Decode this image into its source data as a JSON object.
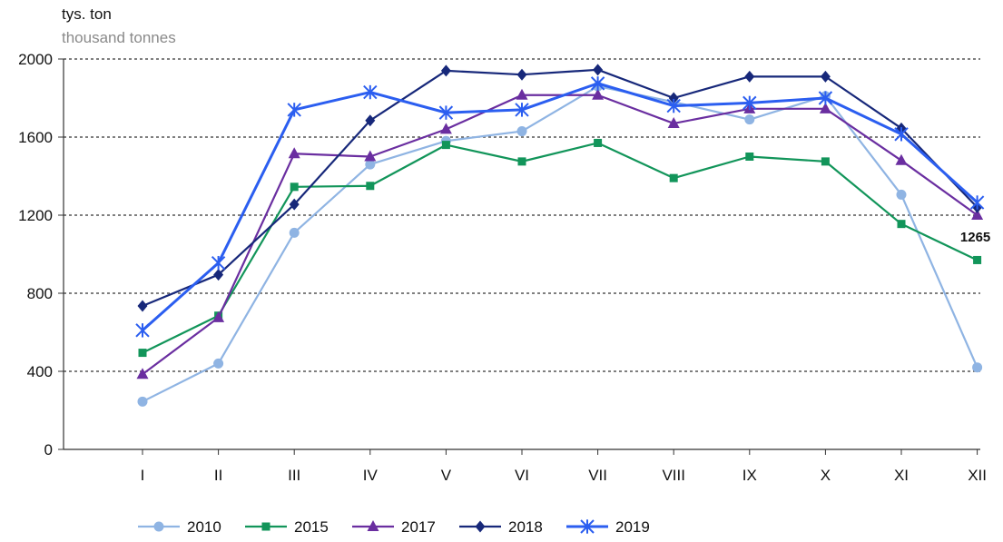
{
  "chart_data": {
    "type": "line",
    "unit_label": "tys. ton",
    "unit_label_en": "thousand tonnes",
    "categories": [
      "I",
      "II",
      "III",
      "IV",
      "V",
      "VI",
      "VII",
      "VIII",
      "IX",
      "X",
      "XI",
      "XII"
    ],
    "ylim": [
      0,
      2000
    ],
    "yticks": [
      0,
      400,
      800,
      1200,
      1600,
      2000
    ],
    "grid": true,
    "legend_position": "bottom",
    "series": [
      {
        "name": "2010",
        "color": "#8fb4e3",
        "marker": "circle",
        "values": [
          245,
          440,
          1110,
          1460,
          1580,
          1630,
          1860,
          1780,
          1690,
          1810,
          1305,
          420
        ]
      },
      {
        "name": "2015",
        "color": "#12955a",
        "marker": "square",
        "values": [
          495,
          685,
          1345,
          1350,
          1560,
          1475,
          1570,
          1390,
          1500,
          1475,
          1155,
          970
        ]
      },
      {
        "name": "2017",
        "color": "#6a2ea0",
        "marker": "triangle",
        "values": [
          385,
          675,
          1515,
          1500,
          1640,
          1815,
          1815,
          1670,
          1745,
          1745,
          1480,
          1200
        ]
      },
      {
        "name": "2018",
        "color": "#17287a",
        "marker": "diamond",
        "values": [
          735,
          895,
          1255,
          1685,
          1940,
          1920,
          1945,
          1800,
          1910,
          1910,
          1645,
          1240
        ]
      },
      {
        "name": "2019",
        "color": "#2b5ef0",
        "marker": "asterisk",
        "values": [
          610,
          955,
          1740,
          1830,
          1725,
          1740,
          1875,
          1760,
          1775,
          1800,
          1615,
          1265
        ]
      }
    ],
    "annotations": [
      {
        "text": "1265",
        "series": "2019",
        "category": "XII"
      }
    ]
  }
}
